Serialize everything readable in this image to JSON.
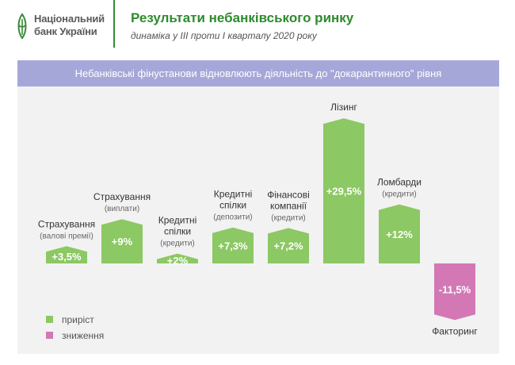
{
  "header": {
    "logo_line1": "Національний",
    "logo_line2": "банк України",
    "title": "Результати небанківського ринку",
    "subtitle": "динаміка у ІІІ проти І кварталу 2020 року"
  },
  "banner": {
    "text": "Небанківські фінустанови відновлюють діяльність до \"докарантинного\" рівня"
  },
  "legend": {
    "growth": "приріст",
    "decline": "зниження"
  },
  "colors": {
    "growth": "#8cc863",
    "decline": "#d378b5",
    "banner": "#a6a7d9",
    "title": "#2f8a2f"
  },
  "chart_data": {
    "type": "bar",
    "title": "",
    "xlabel": "",
    "ylabel": "",
    "unit": "%",
    "ylim": [
      -11.5,
      29.5
    ],
    "bars": [
      {
        "name": [
          "Страхування"
        ],
        "sub": [
          "(валові премії)"
        ],
        "value": 3.5,
        "label": "+3,5%"
      },
      {
        "name": [
          "Страхування"
        ],
        "sub": [
          "(виплати)"
        ],
        "value": 9,
        "label": "+9%"
      },
      {
        "name": [
          "Кредитні",
          "спілки"
        ],
        "sub": [
          "(кредити)"
        ],
        "value": 2,
        "label": "+2%"
      },
      {
        "name": [
          "Кредитні",
          "спілки"
        ],
        "sub": [
          "(депозити)"
        ],
        "value": 7.3,
        "label": "+7,3%"
      },
      {
        "name": [
          "Фінансові",
          "компанії"
        ],
        "sub": [
          "(кредити)"
        ],
        "value": 7.2,
        "label": "+7,2%"
      },
      {
        "name": [
          "Лізинг"
        ],
        "sub": [],
        "value": 29.5,
        "label": "+29,5%"
      },
      {
        "name": [
          "Ломбарди"
        ],
        "sub": [
          "(кредити)"
        ],
        "value": 12,
        "label": "+12%"
      },
      {
        "name": [
          "Факторинг"
        ],
        "sub": [],
        "value": -11.5,
        "label": "-11,5%"
      }
    ]
  }
}
